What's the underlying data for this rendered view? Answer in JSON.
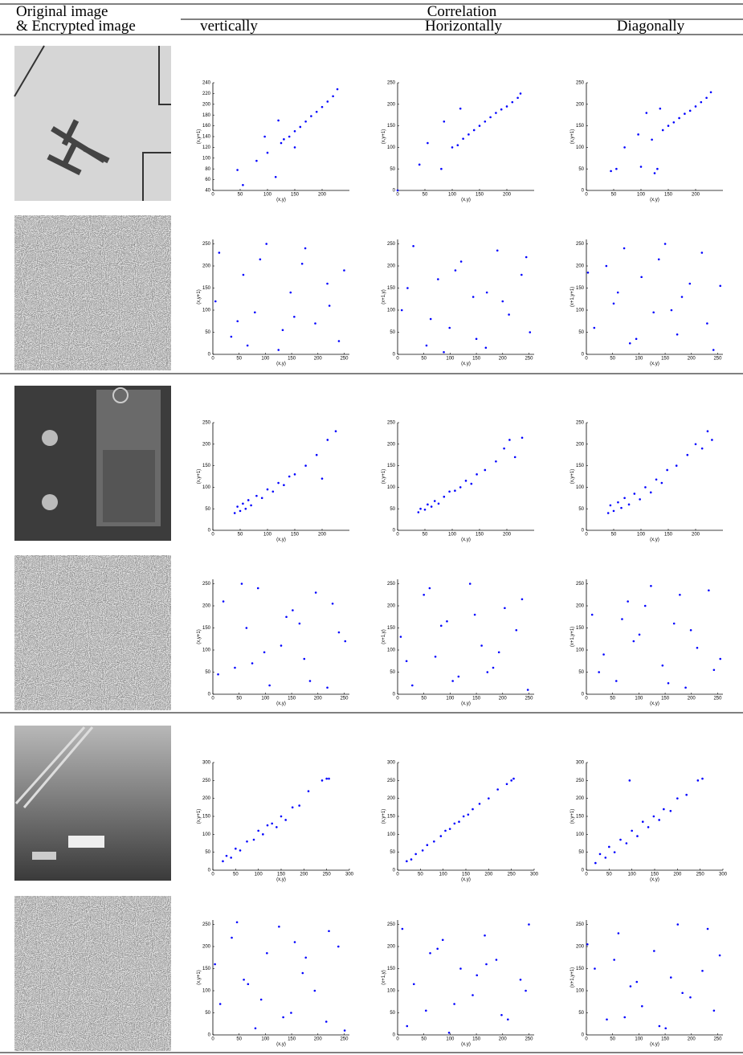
{
  "header": {
    "col1_line1": "Original image",
    "col1_line2": "& Encrypted image",
    "group": "Correlation",
    "columns": [
      "vertically",
      "Horizontally",
      "Diagonally"
    ]
  },
  "chart_data": [
    {
      "type": "scatter",
      "xlabel": "(x,y)",
      "ylabel": "(x,y+1)",
      "color": "#0000ff",
      "xlim": [
        0,
        250
      ],
      "ylim": [
        40,
        240
      ],
      "xticks": [
        0,
        50,
        100,
        150,
        200
      ],
      "yticks": [
        40,
        60,
        80,
        100,
        120,
        140,
        160,
        180,
        200,
        220,
        240
      ],
      "x": [
        45,
        55,
        80,
        100,
        115,
        125,
        130,
        140,
        150,
        160,
        170,
        180,
        190,
        200,
        210,
        220,
        228,
        150,
        120,
        95
      ],
      "y": [
        78,
        50,
        95,
        110,
        65,
        128,
        135,
        140,
        150,
        158,
        168,
        178,
        186,
        195,
        205,
        215,
        228,
        120,
        170,
        140
      ]
    },
    {
      "type": "scatter",
      "xlabel": "(x,y)",
      "ylabel": "(x,y+1)",
      "color": "#0000ff",
      "xlim": [
        0,
        250
      ],
      "ylim": [
        0,
        250
      ],
      "xticks": [
        0,
        50,
        100,
        150,
        200
      ],
      "yticks": [
        0,
        50,
        100,
        150,
        200,
        250
      ],
      "x": [
        0,
        40,
        55,
        80,
        100,
        110,
        120,
        130,
        140,
        150,
        160,
        170,
        180,
        190,
        200,
        210,
        220,
        225,
        115,
        85
      ],
      "y": [
        0,
        60,
        110,
        50,
        100,
        105,
        120,
        130,
        140,
        150,
        160,
        170,
        180,
        188,
        195,
        205,
        215,
        225,
        190,
        160
      ]
    },
    {
      "type": "scatter",
      "xlabel": "(x,y)",
      "ylabel": "(x,y+1)",
      "color": "#0000ff",
      "xlim": [
        0,
        250
      ],
      "ylim": [
        0,
        250
      ],
      "xticks": [
        0,
        50,
        100,
        150,
        200
      ],
      "yticks": [
        0,
        50,
        100,
        150,
        200,
        250
      ],
      "x": [
        45,
        55,
        70,
        95,
        110,
        120,
        130,
        140,
        150,
        160,
        170,
        180,
        190,
        200,
        210,
        220,
        228,
        135,
        100,
        125
      ],
      "y": [
        45,
        50,
        100,
        130,
        180,
        118,
        50,
        140,
        150,
        158,
        168,
        178,
        185,
        195,
        205,
        215,
        228,
        190,
        55,
        40
      ]
    },
    {
      "type": "scatter",
      "xlabel": "(x,y)",
      "ylabel": "(x,y+1)",
      "color": "#0000ff",
      "xlim": [
        0,
        260
      ],
      "ylim": [
        0,
        260
      ],
      "xticks": [
        0,
        50,
        100,
        150,
        200,
        250
      ],
      "yticks": [
        0,
        50,
        100,
        150,
        200,
        250
      ],
      "x": [
        12,
        35,
        58,
        80,
        102,
        125,
        148,
        170,
        195,
        218,
        240,
        5,
        47,
        90,
        133,
        176,
        222,
        250,
        66,
        155
      ],
      "y": [
        230,
        40,
        180,
        95,
        250,
        10,
        140,
        205,
        70,
        160,
        30,
        120,
        75,
        215,
        55,
        240,
        110,
        190,
        20,
        85
      ]
    },
    {
      "type": "scatter",
      "xlabel": "(x,y)",
      "ylabel": "(x+1,y)",
      "color": "#0000ff",
      "xlim": [
        0,
        260
      ],
      "ylim": [
        0,
        260
      ],
      "xticks": [
        0,
        50,
        100,
        150,
        200,
        250
      ],
      "yticks": [
        0,
        50,
        100,
        150,
        200,
        250
      ],
      "x": [
        8,
        30,
        55,
        77,
        99,
        121,
        144,
        168,
        190,
        212,
        236,
        252,
        19,
        63,
        110,
        150,
        200,
        245,
        88,
        170
      ],
      "y": [
        100,
        245,
        20,
        170,
        60,
        210,
        130,
        15,
        235,
        90,
        180,
        50,
        150,
        80,
        190,
        35,
        120,
        220,
        5,
        140
      ]
    },
    {
      "type": "scatter",
      "xlabel": "(x,y)",
      "ylabel": "(x+1,y+1)",
      "color": "#0000ff",
      "xlim": [
        0,
        260
      ],
      "ylim": [
        0,
        260
      ],
      "xticks": [
        0,
        50,
        100,
        150,
        200,
        250
      ],
      "yticks": [
        0,
        50,
        100,
        150,
        200,
        250
      ],
      "x": [
        15,
        38,
        60,
        83,
        105,
        128,
        150,
        173,
        197,
        220,
        242,
        3,
        52,
        95,
        138,
        182,
        230,
        255,
        72,
        162
      ],
      "y": [
        60,
        200,
        140,
        25,
        175,
        95,
        250,
        45,
        160,
        230,
        10,
        185,
        115,
        35,
        215,
        130,
        70,
        155,
        240,
        100
      ]
    },
    {
      "type": "scatter",
      "xlabel": "(x,y)",
      "ylabel": "(x,y+1)",
      "color": "#0000ff",
      "xlim": [
        0,
        250
      ],
      "ylim": [
        0,
        250
      ],
      "xticks": [
        0,
        50,
        100,
        150,
        200
      ],
      "yticks": [
        0,
        50,
        100,
        150,
        200,
        250
      ],
      "x": [
        40,
        45,
        50,
        55,
        60,
        65,
        70,
        80,
        90,
        100,
        110,
        120,
        130,
        140,
        150,
        170,
        190,
        200,
        210,
        225
      ],
      "y": [
        40,
        55,
        45,
        62,
        50,
        70,
        58,
        80,
        75,
        95,
        90,
        110,
        105,
        125,
        130,
        150,
        175,
        120,
        210,
        230
      ]
    },
    {
      "type": "scatter",
      "xlabel": "(x,y)",
      "ylabel": "(x,y+1)",
      "color": "#0000ff",
      "xlim": [
        0,
        250
      ],
      "ylim": [
        0,
        250
      ],
      "xticks": [
        0,
        50,
        100,
        150,
        200
      ],
      "yticks": [
        0,
        50,
        100,
        150,
        200,
        250
      ],
      "x": [
        38,
        42,
        50,
        55,
        62,
        68,
        75,
        85,
        95,
        105,
        115,
        125,
        135,
        145,
        160,
        180,
        195,
        205,
        215,
        228
      ],
      "y": [
        42,
        50,
        48,
        60,
        55,
        68,
        62,
        78,
        90,
        92,
        100,
        115,
        108,
        130,
        140,
        160,
        190,
        210,
        170,
        215
      ]
    },
    {
      "type": "scatter",
      "xlabel": "(x,y)",
      "ylabel": "(x,y+1)",
      "color": "#0000ff",
      "xlim": [
        0,
        250
      ],
      "ylim": [
        0,
        250
      ],
      "xticks": [
        0,
        50,
        100,
        150,
        200
      ],
      "yticks": [
        0,
        50,
        100,
        150,
        200,
        250
      ],
      "x": [
        40,
        44,
        50,
        58,
        64,
        70,
        78,
        88,
        98,
        108,
        118,
        128,
        138,
        148,
        165,
        185,
        200,
        212,
        222,
        230
      ],
      "y": [
        40,
        58,
        45,
        65,
        52,
        75,
        60,
        85,
        72,
        100,
        88,
        118,
        110,
        140,
        150,
        175,
        200,
        190,
        230,
        210
      ]
    },
    {
      "type": "scatter",
      "xlabel": "(x,y)",
      "ylabel": "(x,y+1)",
      "color": "#0000ff",
      "xlim": [
        0,
        260
      ],
      "ylim": [
        0,
        260
      ],
      "xticks": [
        0,
        50,
        100,
        150,
        200,
        250
      ],
      "yticks": [
        0,
        50,
        100,
        150,
        200,
        250
      ],
      "x": [
        20,
        42,
        64,
        86,
        108,
        130,
        152,
        174,
        196,
        218,
        240,
        10,
        55,
        98,
        140,
        185,
        228,
        252,
        75,
        165
      ],
      "y": [
        210,
        60,
        150,
        240,
        20,
        110,
        190,
        80,
        230,
        15,
        140,
        45,
        250,
        95,
        175,
        30,
        205,
        120,
        70,
        160
      ]
    },
    {
      "type": "scatter",
      "xlabel": "(x,y)",
      "ylabel": "(x+1,y)",
      "color": "#0000ff",
      "xlim": [
        0,
        260
      ],
      "ylim": [
        0,
        260
      ],
      "xticks": [
        0,
        50,
        100,
        150,
        200,
        250
      ],
      "yticks": [
        0,
        50,
        100,
        150,
        200,
        250
      ],
      "x": [
        6,
        28,
        50,
        72,
        94,
        116,
        138,
        160,
        182,
        204,
        226,
        248,
        17,
        61,
        105,
        147,
        193,
        237,
        83,
        171
      ],
      "y": [
        130,
        20,
        225,
        85,
        165,
        40,
        250,
        110,
        60,
        195,
        145,
        10,
        75,
        240,
        30,
        180,
        95,
        215,
        155,
        50
      ]
    },
    {
      "type": "scatter",
      "xlabel": "(x,y)",
      "ylabel": "(x+1,y+1)",
      "color": "#0000ff",
      "xlim": [
        0,
        260
      ],
      "ylim": [
        0,
        260
      ],
      "xticks": [
        0,
        50,
        100,
        150,
        200,
        250
      ],
      "yticks": [
        0,
        50,
        100,
        150,
        200,
        250
      ],
      "x": [
        11,
        33,
        57,
        79,
        101,
        123,
        145,
        167,
        189,
        211,
        233,
        255,
        24,
        68,
        112,
        156,
        199,
        243,
        90,
        178
      ],
      "y": [
        180,
        90,
        30,
        210,
        135,
        245,
        65,
        160,
        15,
        105,
        235,
        80,
        50,
        170,
        200,
        25,
        145,
        55,
        120,
        225
      ]
    },
    {
      "type": "scatter",
      "xlabel": "(x,y)",
      "ylabel": "(x,y+1)",
      "color": "#0000ff",
      "xlim": [
        0,
        300
      ],
      "ylim": [
        0,
        300
      ],
      "xticks": [
        0,
        50,
        100,
        150,
        200,
        250,
        300
      ],
      "yticks": [
        0,
        50,
        100,
        150,
        200,
        250,
        300
      ],
      "x": [
        22,
        30,
        40,
        50,
        60,
        75,
        90,
        100,
        110,
        120,
        130,
        140,
        150,
        160,
        175,
        190,
        210,
        240,
        250,
        255
      ],
      "y": [
        25,
        40,
        35,
        60,
        55,
        80,
        85,
        110,
        100,
        125,
        130,
        120,
        150,
        140,
        175,
        180,
        220,
        250,
        255,
        255
      ]
    },
    {
      "type": "scatter",
      "xlabel": "(x,y)",
      "ylabel": "(x,y+1)",
      "color": "#0000ff",
      "xlim": [
        0,
        300
      ],
      "ylim": [
        0,
        300
      ],
      "xticks": [
        0,
        50,
        100,
        150,
        200,
        250,
        300
      ],
      "yticks": [
        0,
        50,
        100,
        150,
        200,
        250,
        300
      ],
      "x": [
        20,
        30,
        40,
        55,
        65,
        80,
        95,
        105,
        115,
        125,
        135,
        145,
        155,
        165,
        180,
        200,
        220,
        240,
        255,
        250
      ],
      "y": [
        25,
        30,
        45,
        55,
        70,
        80,
        95,
        110,
        115,
        130,
        135,
        150,
        155,
        170,
        185,
        200,
        225,
        240,
        255,
        250
      ]
    },
    {
      "type": "scatter",
      "xlabel": "(x,y)",
      "ylabel": "(x,y+1)",
      "color": "#0000ff",
      "xlim": [
        0,
        300
      ],
      "ylim": [
        0,
        300
      ],
      "xticks": [
        0,
        50,
        100,
        150,
        200,
        250,
        300
      ],
      "yticks": [
        0,
        50,
        100,
        150,
        200,
        250,
        300
      ],
      "x": [
        20,
        30,
        42,
        50,
        62,
        75,
        88,
        100,
        112,
        124,
        136,
        148,
        160,
        170,
        185,
        200,
        220,
        245,
        255,
        95
      ],
      "y": [
        20,
        45,
        35,
        65,
        50,
        85,
        75,
        110,
        95,
        135,
        120,
        150,
        140,
        170,
        165,
        200,
        210,
        250,
        255,
        250
      ]
    },
    {
      "type": "scatter",
      "xlabel": "(x,y)",
      "ylabel": "(x,y+1)",
      "color": "#0000ff",
      "xlim": [
        0,
        260
      ],
      "ylim": [
        0,
        260
      ],
      "xticks": [
        0,
        50,
        100,
        150,
        200,
        250
      ],
      "yticks": [
        0,
        50,
        100,
        150,
        200,
        250
      ],
      "x": [
        14,
        36,
        59,
        81,
        103,
        126,
        149,
        171,
        194,
        216,
        239,
        4,
        46,
        92,
        134,
        177,
        221,
        251,
        67,
        156
      ],
      "y": [
        70,
        220,
        125,
        15,
        185,
        245,
        50,
        140,
        100,
        30,
        200,
        160,
        255,
        80,
        40,
        175,
        235,
        10,
        115,
        210
      ]
    },
    {
      "type": "scatter",
      "xlabel": "(x,y)",
      "ylabel": "(x+1,y)",
      "color": "#0000ff",
      "xlim": [
        0,
        260
      ],
      "ylim": [
        0,
        260
      ],
      "xticks": [
        0,
        50,
        100,
        150,
        200,
        250
      ],
      "yticks": [
        0,
        50,
        100,
        150,
        200,
        250
      ],
      "x": [
        9,
        31,
        54,
        76,
        98,
        120,
        143,
        166,
        188,
        210,
        234,
        250,
        18,
        62,
        108,
        151,
        198,
        244,
        86,
        169
      ],
      "y": [
        240,
        115,
        55,
        195,
        5,
        150,
        90,
        225,
        170,
        35,
        125,
        250,
        20,
        185,
        70,
        135,
        45,
        100,
        215,
        160
      ]
    },
    {
      "type": "scatter",
      "xlabel": "(x,y)",
      "ylabel": "(x+1,y+1)",
      "color": "#0000ff",
      "xlim": [
        0,
        260
      ],
      "ylim": [
        0,
        260
      ],
      "xticks": [
        0,
        50,
        100,
        150,
        200,
        250
      ],
      "yticks": [
        0,
        50,
        100,
        150,
        200,
        250
      ],
      "x": [
        16,
        39,
        61,
        84,
        106,
        129,
        151,
        174,
        198,
        221,
        243,
        2,
        53,
        96,
        139,
        183,
        231,
        254,
        73,
        161
      ],
      "y": [
        150,
        35,
        230,
        110,
        65,
        190,
        15,
        250,
        85,
        145,
        55,
        205,
        170,
        120,
        20,
        95,
        240,
        180,
        40,
        130
      ]
    }
  ]
}
